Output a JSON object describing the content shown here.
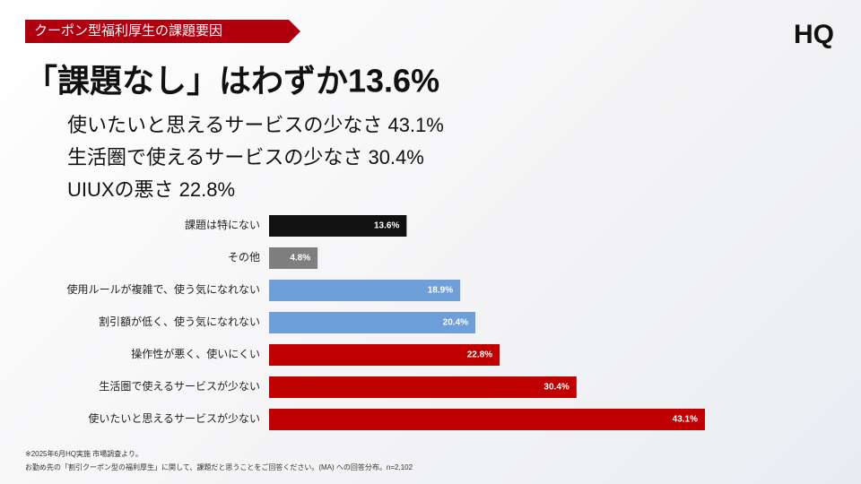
{
  "slide": {
    "tag": "クーポン型福利厚生の課題要因",
    "logo": "HQ",
    "headline": "「課題なし」はわずか13.6%",
    "points": [
      "使いたいと思えるサービスの少なさ 43.1%",
      "生活圏で使えるサービスの少なさ 30.4%",
      "UIUXの悪さ 22.8%"
    ],
    "notes": [
      "※2025年6月HQ実施 市場調査より。",
      "お勤め先の「割引クーポン型の福利厚生」に関して、課題だと思うことをご回答ください。(MA) への回答分布。n=2,102"
    ]
  },
  "chart_data": {
    "type": "hbar",
    "categories": [
      "課題は特にない",
      "その他",
      "使用ルールが複雑で、使う気になれない",
      "割引額が低く、使う気になれない",
      "操作性が悪く、使いにくい",
      "生活圏で使えるサービスが少ない",
      "使いたいと思えるサービスが少ない"
    ],
    "values": [
      13.6,
      4.8,
      18.9,
      20.4,
      22.8,
      30.4,
      43.1
    ],
    "value_labels": [
      "13.6%",
      "4.8%",
      "18.9%",
      "20.4%",
      "22.8%",
      "30.4%",
      "43.1%"
    ],
    "colors": [
      "#111111",
      "#7f7f7f",
      "#6f9fd8",
      "#6f9fd8",
      "#c00000",
      "#c00000",
      "#c00000"
    ]
  }
}
